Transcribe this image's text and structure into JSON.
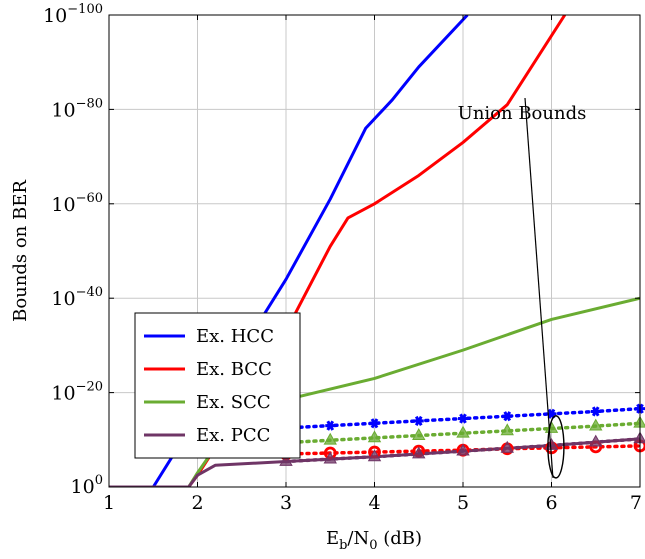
{
  "chart_data": {
    "type": "line",
    "xlabel": "E_b/N_0 (dB)",
    "xlabel_parts": {
      "base": "E",
      "sub1": "b",
      "mid": "/N",
      "sub2": "0",
      "unit": " (dB)"
    },
    "ylabel": "Bounds on BER",
    "xlim": [
      1,
      7
    ],
    "ylim_log10": [
      -100,
      0
    ],
    "y_scale": "log",
    "x_ticks": [
      1,
      2,
      3,
      4,
      5,
      6,
      7
    ],
    "x_tick_labels": [
      "1",
      "2",
      "3",
      "4",
      "5",
      "6",
      "7"
    ],
    "y_ticks_log10": [
      0,
      -20,
      -40,
      -60,
      -80,
      -100
    ],
    "y_tick_labels": [
      {
        "base": "10",
        "exp": "0"
      },
      {
        "base": "10",
        "exp": "−20"
      },
      {
        "base": "10",
        "exp": "−40"
      },
      {
        "base": "10",
        "exp": "−60"
      },
      {
        "base": "10",
        "exp": "−80"
      },
      {
        "base": "10",
        "exp": "−100"
      }
    ],
    "grid": true,
    "legend_position": "bottom-left",
    "series": [
      {
        "name": "Ex. HCC",
        "color": "#0000ff",
        "style": "solid",
        "x": [
          1.0,
          1.5,
          2.0,
          2.5,
          3.0,
          3.5,
          3.9,
          4.2,
          4.5,
          5.05
        ],
        "log10_y": [
          0,
          0,
          -15,
          -29,
          -44,
          -61,
          -76,
          -82,
          -89,
          -100
        ]
      },
      {
        "name": "Ex. BCC",
        "color": "#ff0000",
        "style": "solid",
        "x": [
          1.0,
          1.9,
          2.0,
          2.5,
          3.0,
          3.5,
          3.7,
          4.0,
          4.5,
          5.0,
          5.5,
          6.15
        ],
        "log10_y": [
          0,
          0,
          -2.5,
          -17,
          -33,
          -51,
          -57,
          -60,
          -66,
          -73,
          -81,
          -100
        ]
      },
      {
        "name": "Ex. SCC",
        "color": "#6aac32",
        "style": "solid",
        "x": [
          1.0,
          1.9,
          2.0,
          2.5,
          3.0,
          4.0,
          5.0,
          6.0,
          7.0
        ],
        "log10_y": [
          0,
          0,
          -3,
          -16.5,
          -18.5,
          -23,
          -29,
          -35.5,
          -40
        ]
      },
      {
        "name": "Ex. PCC",
        "color": "#6f3566",
        "style": "solid",
        "x": [
          1.0,
          1.9,
          2.0,
          2.2,
          3.0,
          4.0,
          5.0,
          6.0,
          7.0
        ],
        "log10_y": [
          0,
          0,
          -2.5,
          -4.6,
          -5.4,
          -6.4,
          -7.6,
          -8.8,
          -10.2
        ]
      },
      {
        "name": "",
        "color": "#ff0000",
        "style": "dotted",
        "marker": "circle",
        "x": [
          3.0,
          3.5,
          4.0,
          4.5,
          5.0,
          5.5,
          6.0,
          6.5,
          7.0
        ],
        "log10_y": [
          -7.0,
          -7.2,
          -7.4,
          -7.6,
          -7.8,
          -8.1,
          -8.3,
          -8.5,
          -8.7
        ]
      },
      {
        "name": "",
        "color": "#6f3566",
        "style": "dotted",
        "marker": "triangle",
        "x": [
          3.0,
          3.5,
          4.0,
          4.5,
          5.0,
          5.5,
          6.0,
          6.5,
          7.0
        ],
        "log10_y": [
          -5.4,
          -5.9,
          -6.4,
          -7.0,
          -7.6,
          -8.2,
          -8.8,
          -9.5,
          -10.2
        ]
      },
      {
        "name": "",
        "color": "#6aac32",
        "style": "dotted",
        "marker": "triangle",
        "x": [
          3.0,
          3.5,
          4.0,
          4.5,
          5.0,
          5.5,
          6.0,
          6.5,
          7.0
        ],
        "log10_y": [
          -9.4,
          -9.9,
          -10.4,
          -10.9,
          -11.4,
          -11.9,
          -12.4,
          -12.9,
          -13.5
        ]
      },
      {
        "name": "",
        "color": "#0000ff",
        "style": "dotted",
        "marker": "asterisk",
        "x": [
          3.0,
          3.5,
          4.0,
          4.5,
          5.0,
          5.5,
          6.0,
          6.5,
          7.0
        ],
        "log10_y": [
          -12.5,
          -13.0,
          -13.5,
          -14.0,
          -14.5,
          -15.0,
          -15.5,
          -16.0,
          -16.6
        ]
      }
    ],
    "annotation": {
      "text": "Union Bounds",
      "ellipse_x": 6.05,
      "ellipse_log10_y": -8.5
    }
  }
}
